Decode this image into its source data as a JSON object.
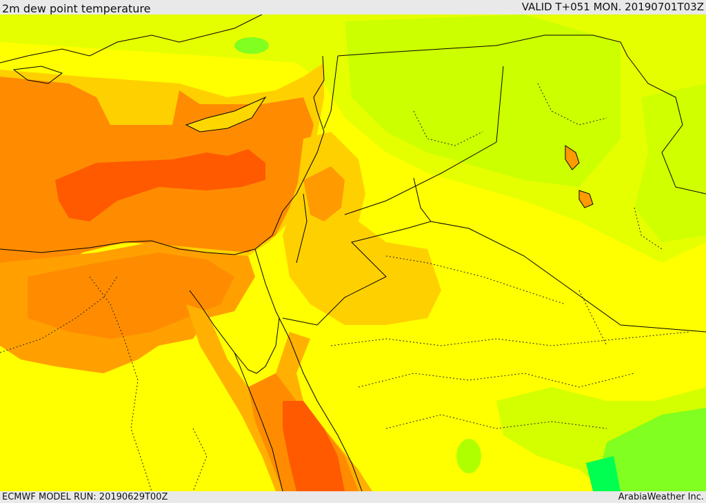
{
  "header": {
    "title": "2m dew point temperature",
    "valid": "VALID T+051 MON. 20190701T03Z"
  },
  "footer": {
    "model_run": "ECMWF MODEL RUN: 20190629T00Z",
    "credit": "ArabiaWeather Inc."
  },
  "colors": {
    "yellow": "#ffff00",
    "gold": "#ffd700",
    "orange": "#ff8c00",
    "dark_orange": "#ff5a00",
    "lime": "#d4ff00",
    "green": "#00ff50"
  }
}
